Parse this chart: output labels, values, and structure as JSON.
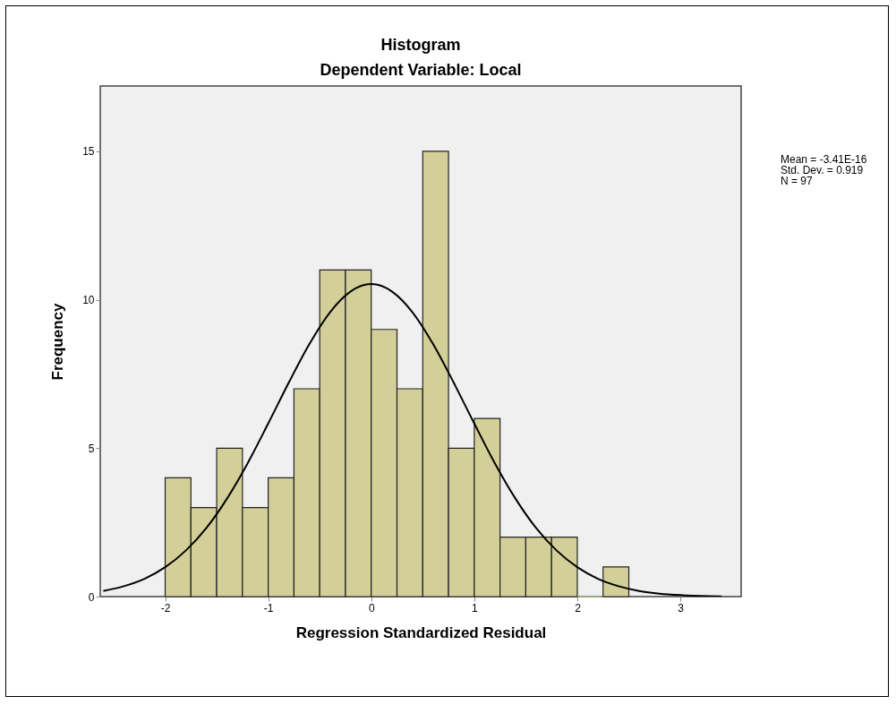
{
  "chart_data": {
    "type": "histogram",
    "title": "Histogram",
    "subtitle": "Dependent Variable: Local",
    "xlabel": "Regression Standardized Residual",
    "ylabel": "Frequency",
    "xlim": [
      -2.63,
      3.59
    ],
    "ylim": [
      0,
      17.2
    ],
    "xticks": [
      -2,
      -1,
      0,
      1,
      2,
      3
    ],
    "yticks": [
      0,
      5,
      10,
      15
    ],
    "annotations": [
      "Mean = -3.41E-16",
      "Std. Dev. = 0.919",
      "N = 97"
    ],
    "series": [
      {
        "type": "histogram",
        "color": "#d3cf98",
        "bins": [
          -2,
          -1.75,
          -1.5,
          -1.25,
          -1,
          -0.75,
          -0.5,
          -0.25,
          0,
          0.25,
          0.5,
          0.75,
          1,
          1.25,
          1.5,
          1.75,
          2,
          2.25,
          2.5
        ],
        "values": [
          4,
          3,
          5,
          3,
          4,
          7,
          11,
          11,
          9,
          7,
          15,
          5,
          6,
          2,
          2,
          2,
          0,
          1
        ]
      },
      {
        "type": "line",
        "color": "#000000",
        "x": [
          -2.6,
          -2.4,
          -2.2,
          -2,
          -1.8,
          -1.6,
          -1.4,
          -1.2,
          -1,
          -0.8,
          -0.6,
          -0.4,
          -0.2,
          0,
          0.2,
          0.4,
          0.6,
          0.8,
          1,
          1.2,
          1.4,
          1.6,
          1.8,
          2,
          2.2,
          2.4,
          2.6,
          2.8,
          3,
          3.2,
          3.4
        ],
        "values": [
          0.19,
          0.35,
          0.6,
          0.99,
          1.55,
          2.31,
          3.3,
          4.49,
          5.83,
          7.21,
          8.51,
          9.58,
          10.28,
          10.53,
          10.28,
          9.58,
          8.51,
          7.21,
          5.83,
          4.49,
          3.3,
          2.31,
          1.55,
          0.99,
          0.6,
          0.35,
          0.19,
          0.1,
          0.05,
          0.02,
          0.01
        ]
      }
    ]
  }
}
